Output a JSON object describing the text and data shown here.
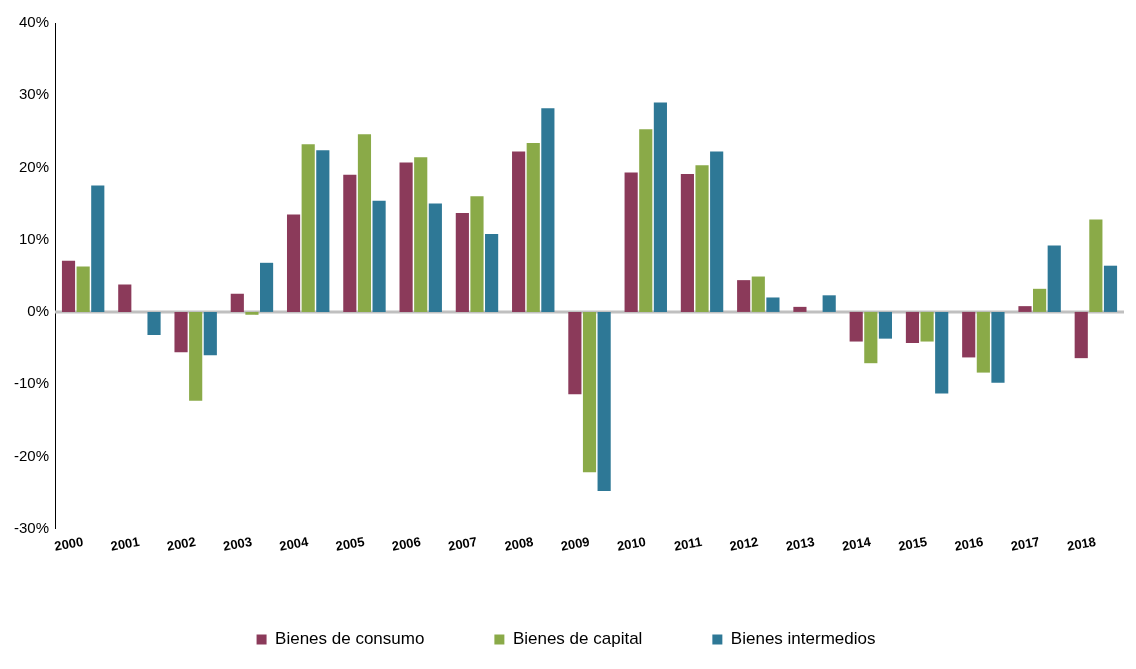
{
  "chart_data": {
    "type": "bar",
    "categories": [
      "2000",
      "2001",
      "2002",
      "2003",
      "2004",
      "2005",
      "2006",
      "2007",
      "2008",
      "2009",
      "2010",
      "2011",
      "2012",
      "2013",
      "2014",
      "2015",
      "2016",
      "2017",
      "2018"
    ],
    "series": [
      {
        "name": "Bienes de consumo",
        "color": "#8b3a5a",
        "values": [
          7.1,
          3.8,
          -5.6,
          2.5,
          13.5,
          19.0,
          20.7,
          13.7,
          22.2,
          -11.4,
          19.3,
          19.1,
          4.4,
          0.7,
          -4.1,
          -4.3,
          -6.3,
          0.8,
          -6.4
        ]
      },
      {
        "name": "Bienes de capital",
        "color": "#8aaa48",
        "values": [
          6.3,
          null,
          -12.3,
          -0.4,
          23.2,
          24.6,
          21.4,
          16.0,
          23.4,
          -22.2,
          25.3,
          20.3,
          4.9,
          null,
          -7.1,
          -4.1,
          -8.4,
          3.2,
          12.8
        ]
      },
      {
        "name": "Bienes intermedios",
        "color": "#2e7896",
        "values": [
          17.5,
          -3.2,
          -6.0,
          6.8,
          22.4,
          15.4,
          15.0,
          10.8,
          28.2,
          -24.8,
          29.0,
          22.2,
          2.0,
          2.3,
          -3.7,
          -11.3,
          -9.8,
          9.2,
          6.4
        ]
      }
    ],
    "ylim": [
      -30,
      40
    ],
    "yticks": [
      {
        "value": -30,
        "label": "-30%"
      },
      {
        "value": -20,
        "label": "-20%"
      },
      {
        "value": -10,
        "label": "-10%"
      },
      {
        "value": 0,
        "label": "0%"
      },
      {
        "value": 10,
        "label": "10%"
      },
      {
        "value": 20,
        "label": "20%"
      },
      {
        "value": 30,
        "label": "30%"
      },
      {
        "value": 40,
        "label": "40%"
      }
    ],
    "grid": false,
    "ref_lines": [
      {
        "axis": "y",
        "value": 0,
        "color": "#c0c0c0"
      }
    ],
    "legend": "bottom"
  }
}
